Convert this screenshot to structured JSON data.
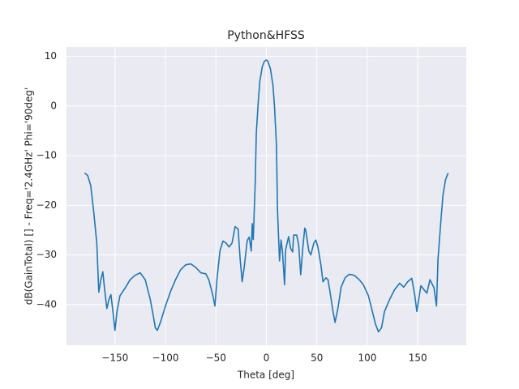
{
  "chart_data": {
    "type": "line",
    "title": "Python&HFSS",
    "x_label": "Theta [deg]",
    "y_label": "dB(GainTotal) [] - Freq='2.4GHz' Phi='90deg'",
    "x": [
      -180,
      -177,
      -174,
      -171,
      -168,
      -166,
      -164,
      -162,
      -160,
      -158,
      -156,
      -154,
      -152,
      -150,
      -148,
      -145,
      -140,
      -135,
      -130,
      -125,
      -120,
      -115,
      -112,
      -110,
      -108,
      -105,
      -100,
      -95,
      -90,
      -85,
      -80,
      -75,
      -70,
      -65,
      -60,
      -57,
      -53,
      -51,
      -49,
      -46,
      -43,
      -40,
      -37,
      -34,
      -31,
      -28,
      -26,
      -24,
      -22,
      -19,
      -17,
      -15,
      -14,
      -13,
      -11,
      -10,
      -8,
      -6.5,
      -4,
      -2,
      0,
      1.5,
      4,
      6.5,
      8,
      10,
      11,
      13,
      14.5,
      16,
      18,
      19,
      22,
      24,
      26,
      27,
      30,
      32,
      34,
      36,
      38,
      39,
      42,
      44,
      47,
      49,
      51,
      54,
      56,
      59,
      61,
      63,
      66,
      68,
      71,
      74,
      78,
      82,
      87,
      92,
      96,
      101,
      104,
      108,
      111,
      114,
      117,
      122,
      127,
      132,
      136,
      140,
      144,
      147,
      149,
      153,
      156,
      159,
      162,
      166,
      168.5,
      170,
      173,
      175,
      177.5,
      180
    ],
    "series": [
      {
        "name": "dB(GainTotal)",
        "color": "#1f77b4",
        "values": [
          -13.5,
          -14,
          -16,
          -21.4,
          -27.6,
          -37.5,
          -35,
          -33.4,
          -37.4,
          -40.8,
          -39,
          -38,
          -41.4,
          -45.2,
          -41.4,
          -38.2,
          -36.7,
          -35,
          -34.1,
          -33.6,
          -35,
          -39,
          -42.3,
          -44.7,
          -45.2,
          -43.6,
          -40.3,
          -37.4,
          -35,
          -33,
          -32,
          -31.8,
          -32.5,
          -33.6,
          -33.8,
          -35,
          -38.2,
          -40.3,
          -35,
          -29.2,
          -27.2,
          -27.6,
          -28.4,
          -27.6,
          -24.3,
          -24.8,
          -30.8,
          -35.4,
          -32.5,
          -27.1,
          -26.4,
          -29.2,
          -23.7,
          -26.9,
          -15,
          -5.5,
          1,
          5,
          8,
          9,
          9.3,
          9,
          7.5,
          4.2,
          0,
          -8,
          -21,
          -31.2,
          -27,
          -29.5,
          -36,
          -29,
          -26.3,
          -28.7,
          -29.4,
          -26,
          -26,
          -28,
          -34,
          -28.7,
          -24.6,
          -25,
          -29.2,
          -30,
          -27.6,
          -27,
          -28.4,
          -32,
          -35.4,
          -34.6,
          -35,
          -37.4,
          -41.4,
          -43.6,
          -40.6,
          -36.5,
          -34.6,
          -33.9,
          -34.1,
          -35,
          -36,
          -38.2,
          -40.6,
          -43.9,
          -45.5,
          -44.7,
          -41.4,
          -39,
          -37,
          -35.7,
          -36.5,
          -35.4,
          -34.7,
          -38.2,
          -41.4,
          -36.2,
          -37,
          -37.7,
          -35,
          -36.6,
          -40.3,
          -30.8,
          -22.7,
          -17.8,
          -14.8,
          -13.5
        ]
      }
    ],
    "xlim": [
      -198,
      198
    ],
    "ylim": [
      -48.2,
      11.9
    ],
    "xticks": [
      {
        "value": -150,
        "label": "−150"
      },
      {
        "value": -100,
        "label": "−100"
      },
      {
        "value": -50,
        "label": "−50"
      },
      0,
      50,
      100,
      150
    ],
    "yticks": [
      {
        "value": -40,
        "label": "−40"
      },
      {
        "value": -30,
        "label": "−30"
      },
      {
        "value": -20,
        "label": "−20"
      },
      {
        "value": -10,
        "label": "−10"
      },
      0,
      10
    ],
    "grid": true
  }
}
